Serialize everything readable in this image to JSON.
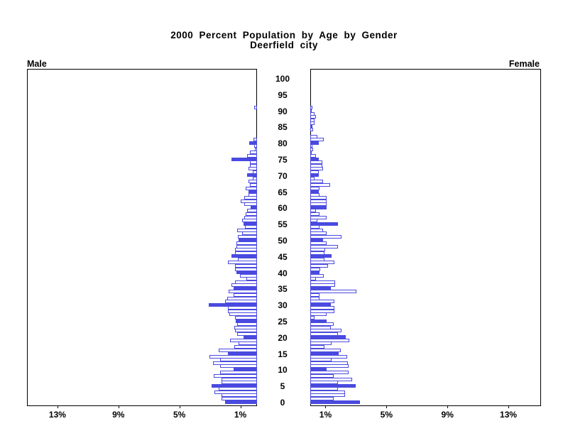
{
  "chart_data": {
    "type": "bar",
    "orientation": "horizontal-pyramid",
    "title": "2000 Percent Population by Age by Gender",
    "subtitle": "Deerfield city",
    "x_axis": {
      "unit": "%",
      "min": 0,
      "max": 15,
      "ticks": [
        1,
        5,
        9,
        13
      ],
      "male_tick_labels": [
        "13%",
        "9%",
        "5%",
        "1%"
      ],
      "female_tick_labels": [
        "1%",
        "5%",
        "9%",
        "13%"
      ]
    },
    "y_axis": {
      "min_age": 0,
      "max_age": 100,
      "label_step": 5,
      "age_labels": [
        "0",
        "5",
        "10",
        "15",
        "20",
        "25",
        "30",
        "35",
        "40",
        "45",
        "50",
        "55",
        "60",
        "65",
        "70",
        "75",
        "80",
        "85",
        "90",
        "95",
        "100"
      ]
    },
    "highlight_every": 5,
    "legend_position": "none",
    "grid": false,
    "colors": {
      "bar_fill_highlight": "#4A4AE0",
      "bar_outline": "#4A4AE0",
      "bar_fill": "#FFFFFF",
      "axis": "#000000"
    },
    "series": [
      {
        "name": "Male",
        "side": "left",
        "values": [
          2.1,
          2.35,
          2.35,
          2.8,
          2.5,
          3.0,
          2.35,
          2.35,
          2.85,
          2.4,
          1.55,
          2.4,
          2.9,
          2.4,
          3.1,
          1.9,
          2.5,
          1.5,
          1.2,
          1.75,
          0.9,
          1.3,
          1.45,
          1.5,
          1.3,
          1.4,
          1.45,
          1.8,
          1.9,
          1.9,
          3.15,
          2.1,
          1.95,
          1.55,
          1.85,
          1.55,
          1.7,
          1.45,
          0.7,
          1.1,
          1.35,
          1.45,
          1.45,
          1.9,
          1.25,
          1.7,
          1.45,
          1.45,
          1.35,
          1.35,
          1.2,
          1.25,
          1.0,
          1.3,
          0.8,
          0.9,
          1.0,
          0.85,
          0.75,
          0.65,
          0.4,
          0.85,
          1.05,
          0.85,
          0.55,
          0.55,
          0.75,
          0.45,
          0.55,
          0.3,
          0.65,
          0.3,
          0.55,
          0.45,
          0.45,
          1.7,
          0.65,
          0.45,
          0.15,
          0.2,
          0.5,
          0.25,
          0,
          0,
          0,
          0,
          0,
          0,
          0,
          0,
          0,
          0.2,
          0,
          0,
          0,
          0,
          0,
          0,
          0,
          0,
          0
        ]
      },
      {
        "name": "Female",
        "side": "right",
        "values": [
          3.25,
          1.55,
          2.3,
          2.3,
          1.8,
          3.0,
          1.8,
          2.75,
          1.55,
          2.5,
          1.05,
          2.5,
          2.45,
          1.4,
          2.4,
          1.85,
          2.0,
          0.95,
          1.4,
          2.55,
          2.35,
          1.8,
          2.05,
          1.35,
          1.55,
          1.05,
          0.3,
          1.05,
          1.6,
          1.6,
          1.35,
          1.6,
          0.6,
          0.6,
          3.05,
          1.35,
          1.65,
          1.65,
          0.35,
          0.9,
          0.6,
          0.65,
          1.15,
          1.6,
          0.95,
          1.4,
          0.95,
          1.0,
          1.8,
          1.05,
          0.85,
          2.05,
          1.05,
          0.85,
          0.6,
          1.8,
          0.45,
          1.05,
          0.6,
          0.35,
          1.05,
          1.05,
          1.05,
          1.05,
          0.6,
          0.55,
          0.6,
          1.3,
          0.85,
          0.3,
          0.55,
          0.55,
          0.85,
          0.8,
          0.8,
          0.57,
          0.37,
          0.1,
          0.2,
          0.15,
          0.55,
          0.9,
          0.45,
          0,
          0.2,
          0.15,
          0.3,
          0.3,
          0.35,
          0.3,
          0.1,
          0.15,
          0,
          0,
          0,
          0,
          0,
          0,
          0,
          0,
          0
        ]
      }
    ]
  }
}
